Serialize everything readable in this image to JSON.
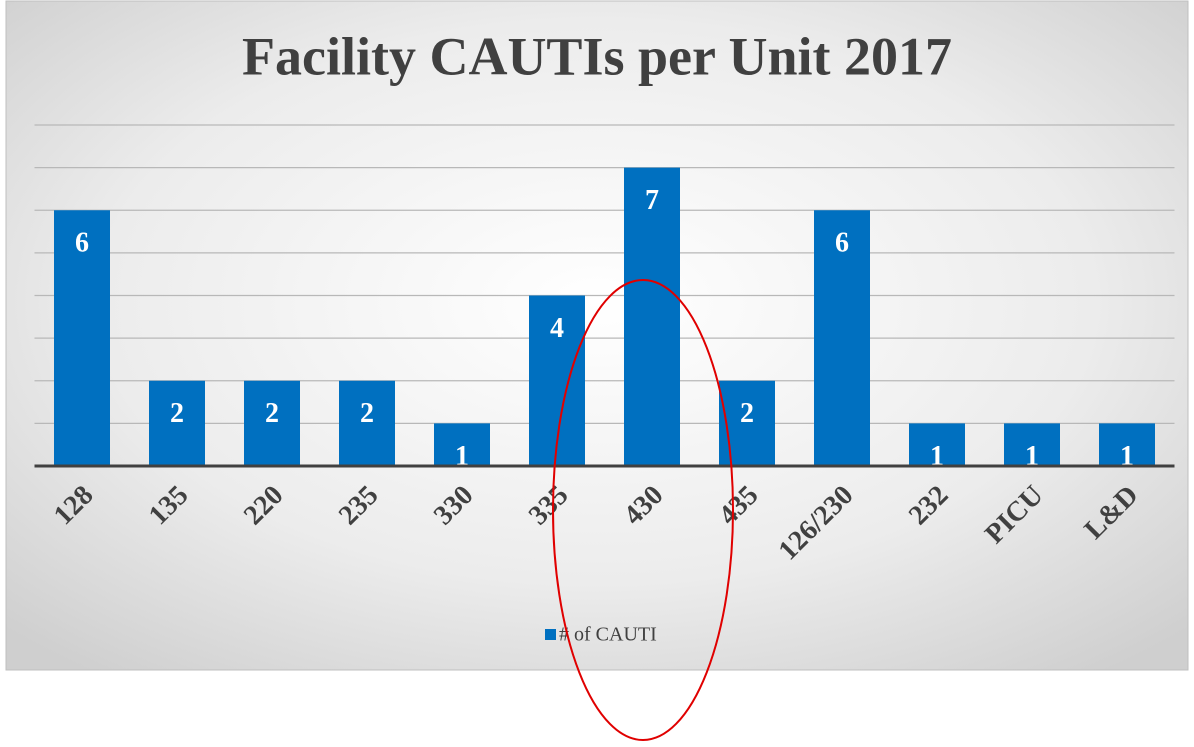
{
  "chart_data": {
    "type": "bar",
    "title": "Facility CAUTIs per Unit 2017",
    "categories": [
      "128",
      "135",
      "220",
      "235",
      "330",
      "335",
      "430",
      "435",
      "126/230",
      "232",
      "PICU",
      "L&D"
    ],
    "series": [
      {
        "name": "# of CAUTI",
        "color": "#0070c0",
        "values": [
          6,
          2,
          2,
          2,
          1,
          4,
          7,
          2,
          6,
          1,
          1,
          1
        ]
      }
    ],
    "ylim": [
      0,
      8
    ],
    "yticks": [
      0,
      1,
      2,
      3,
      4,
      5,
      6,
      7,
      8
    ],
    "grid": true,
    "legend": "bottom"
  }
}
